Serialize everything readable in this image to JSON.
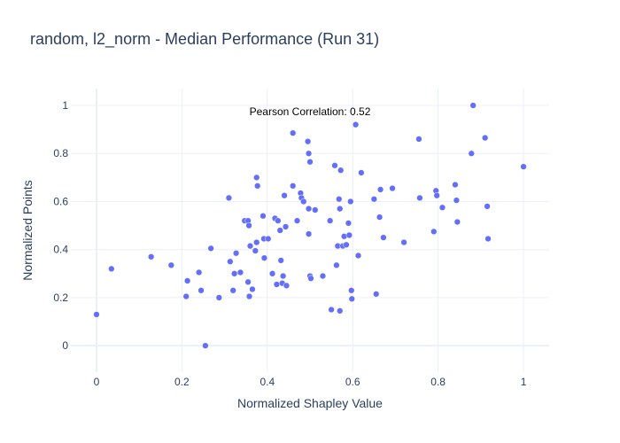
{
  "chart_data": {
    "type": "scatter",
    "title": "random, l2_norm - Median Performance (Run 31)",
    "xlabel": "Normalized Shapley Value",
    "ylabel": "Normalized Points",
    "xlim": [
      -0.06,
      1.06
    ],
    "ylim": [
      -0.11,
      1.07
    ],
    "x_ticks": [
      0,
      0.2,
      0.4,
      0.6,
      0.8,
      1
    ],
    "x_tick_labels": [
      "0",
      "0.2",
      "0.4",
      "0.6",
      "0.8",
      "1"
    ],
    "y_ticks": [
      0,
      0.2,
      0.4,
      0.6,
      0.8,
      1
    ],
    "y_tick_labels": [
      "0",
      "0.2",
      "0.4",
      "0.6",
      "0.8",
      "1"
    ],
    "grid": true,
    "marker_color": "#636efa",
    "annotation": "Pearson Correlation: 0.52",
    "points": [
      [
        0.0,
        0.13
      ],
      [
        0.035,
        0.32
      ],
      [
        0.128,
        0.37
      ],
      [
        0.175,
        0.335
      ],
      [
        0.21,
        0.205
      ],
      [
        0.213,
        0.27
      ],
      [
        0.24,
        0.305
      ],
      [
        0.245,
        0.23
      ],
      [
        0.255,
        0.0
      ],
      [
        0.268,
        0.405
      ],
      [
        0.287,
        0.2
      ],
      [
        0.31,
        0.615
      ],
      [
        0.313,
        0.35
      ],
      [
        0.32,
        0.23
      ],
      [
        0.323,
        0.3
      ],
      [
        0.327,
        0.385
      ],
      [
        0.337,
        0.305
      ],
      [
        0.347,
        0.52
      ],
      [
        0.355,
        0.52
      ],
      [
        0.355,
        0.265
      ],
      [
        0.357,
        0.5
      ],
      [
        0.358,
        0.205
      ],
      [
        0.36,
        0.415
      ],
      [
        0.365,
        0.235
      ],
      [
        0.372,
        0.395
      ],
      [
        0.375,
        0.43
      ],
      [
        0.375,
        0.7
      ],
      [
        0.377,
        0.665
      ],
      [
        0.39,
        0.54
      ],
      [
        0.392,
        0.445
      ],
      [
        0.393,
        0.365
      ],
      [
        0.402,
        0.445
      ],
      [
        0.412,
        0.3
      ],
      [
        0.418,
        0.53
      ],
      [
        0.422,
        0.255
      ],
      [
        0.425,
        0.52
      ],
      [
        0.43,
        0.48
      ],
      [
        0.432,
        0.355
      ],
      [
        0.435,
        0.26
      ],
      [
        0.437,
        0.29
      ],
      [
        0.44,
        0.625
      ],
      [
        0.443,
        0.495
      ],
      [
        0.445,
        0.25
      ],
      [
        0.46,
        0.885
      ],
      [
        0.46,
        0.665
      ],
      [
        0.47,
        0.52
      ],
      [
        0.478,
        0.635
      ],
      [
        0.48,
        0.615
      ],
      [
        0.485,
        0.6
      ],
      [
        0.495,
        0.85
      ],
      [
        0.497,
        0.8
      ],
      [
        0.497,
        0.57
      ],
      [
        0.497,
        0.465
      ],
      [
        0.5,
        0.765
      ],
      [
        0.5,
        0.29
      ],
      [
        0.502,
        0.28
      ],
      [
        0.512,
        0.565
      ],
      [
        0.53,
        0.29
      ],
      [
        0.547,
        0.52
      ],
      [
        0.55,
        0.15
      ],
      [
        0.558,
        0.75
      ],
      [
        0.562,
        0.335
      ],
      [
        0.565,
        0.415
      ],
      [
        0.568,
        0.61
      ],
      [
        0.57,
        0.57
      ],
      [
        0.57,
        0.145
      ],
      [
        0.572,
        0.73
      ],
      [
        0.577,
        0.415
      ],
      [
        0.58,
        0.455
      ],
      [
        0.585,
        0.42
      ],
      [
        0.59,
        0.51
      ],
      [
        0.592,
        0.46
      ],
      [
        0.595,
        0.6
      ],
      [
        0.597,
        0.23
      ],
      [
        0.598,
        0.195
      ],
      [
        0.607,
        0.92
      ],
      [
        0.613,
        0.375
      ],
      [
        0.62,
        0.72
      ],
      [
        0.65,
        0.61
      ],
      [
        0.655,
        0.215
      ],
      [
        0.663,
        0.535
      ],
      [
        0.665,
        0.65
      ],
      [
        0.672,
        0.45
      ],
      [
        0.693,
        0.655
      ],
      [
        0.72,
        0.43
      ],
      [
        0.755,
        0.86
      ],
      [
        0.757,
        0.615
      ],
      [
        0.79,
        0.475
      ],
      [
        0.795,
        0.645
      ],
      [
        0.797,
        0.625
      ],
      [
        0.81,
        0.575
      ],
      [
        0.84,
        0.67
      ],
      [
        0.843,
        0.605
      ],
      [
        0.845,
        0.515
      ],
      [
        0.878,
        0.8
      ],
      [
        0.882,
        1.0
      ],
      [
        0.91,
        0.865
      ],
      [
        0.915,
        0.58
      ],
      [
        0.917,
        0.445
      ],
      [
        1.0,
        0.745
      ]
    ]
  }
}
